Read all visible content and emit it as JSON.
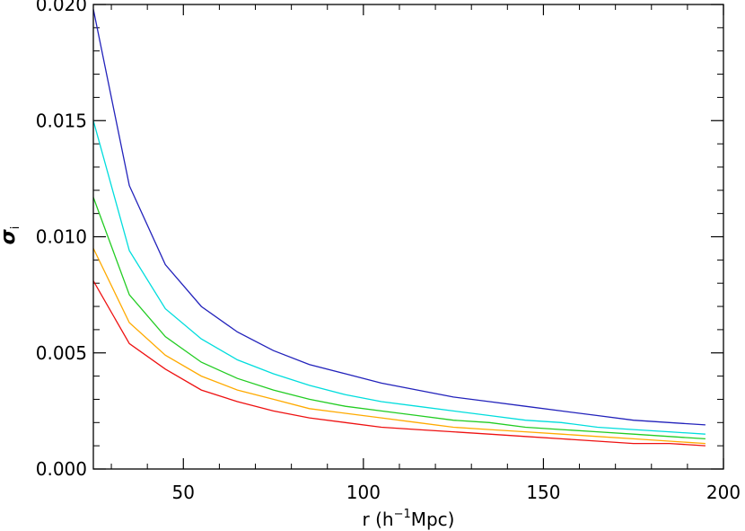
{
  "chart_data": {
    "type": "line",
    "title": "",
    "xlabel_parts": {
      "pre": "r (h",
      "sup": "−1",
      "post": "Mpc)"
    },
    "ylabel_parts": {
      "main": "σ",
      "sub": "i"
    },
    "xlim": [
      25,
      200
    ],
    "ylim": [
      0.0,
      0.02
    ],
    "x_ticks": [
      50,
      100,
      150,
      200
    ],
    "x_tick_labels": [
      "50",
      "100",
      "150",
      "200"
    ],
    "y_ticks": [
      0.0,
      0.005,
      0.01,
      0.015,
      0.02
    ],
    "y_tick_labels": [
      "0.000",
      "0.005",
      "0.010",
      "0.015",
      "0.020"
    ],
    "grid": false,
    "x": [
      25,
      35,
      45,
      55,
      65,
      75,
      85,
      95,
      105,
      115,
      125,
      135,
      145,
      155,
      165,
      175,
      185,
      195
    ],
    "series": [
      {
        "color": "#2222bb",
        "values": [
          0.0198,
          0.0122,
          0.0088,
          0.007,
          0.0059,
          0.0051,
          0.0045,
          0.0041,
          0.0037,
          0.0034,
          0.0031,
          0.0029,
          0.0027,
          0.0025,
          0.0023,
          0.0021,
          0.002,
          0.0019
        ]
      },
      {
        "color": "#00dddd",
        "values": [
          0.015,
          0.0094,
          0.0069,
          0.0056,
          0.0047,
          0.0041,
          0.0036,
          0.0032,
          0.0029,
          0.0027,
          0.0025,
          0.0023,
          0.0021,
          0.002,
          0.0018,
          0.0017,
          0.0016,
          0.0015
        ]
      },
      {
        "color": "#22cc22",
        "values": [
          0.0117,
          0.0075,
          0.0057,
          0.0046,
          0.0039,
          0.0034,
          0.003,
          0.0027,
          0.0025,
          0.0023,
          0.0021,
          0.002,
          0.0018,
          0.0017,
          0.0016,
          0.0015,
          0.0014,
          0.0013
        ]
      },
      {
        "color": "#ffaa00",
        "values": [
          0.0095,
          0.0063,
          0.0049,
          0.004,
          0.0034,
          0.003,
          0.0026,
          0.0024,
          0.0022,
          0.002,
          0.0018,
          0.0017,
          0.0016,
          0.0015,
          0.0014,
          0.0013,
          0.0012,
          0.0011
        ]
      },
      {
        "color": "#ee1111",
        "values": [
          0.0081,
          0.0054,
          0.0043,
          0.0034,
          0.0029,
          0.0025,
          0.0022,
          0.002,
          0.0018,
          0.0017,
          0.0016,
          0.0015,
          0.0014,
          0.0013,
          0.0012,
          0.0011,
          0.0011,
          0.001
        ]
      }
    ]
  }
}
